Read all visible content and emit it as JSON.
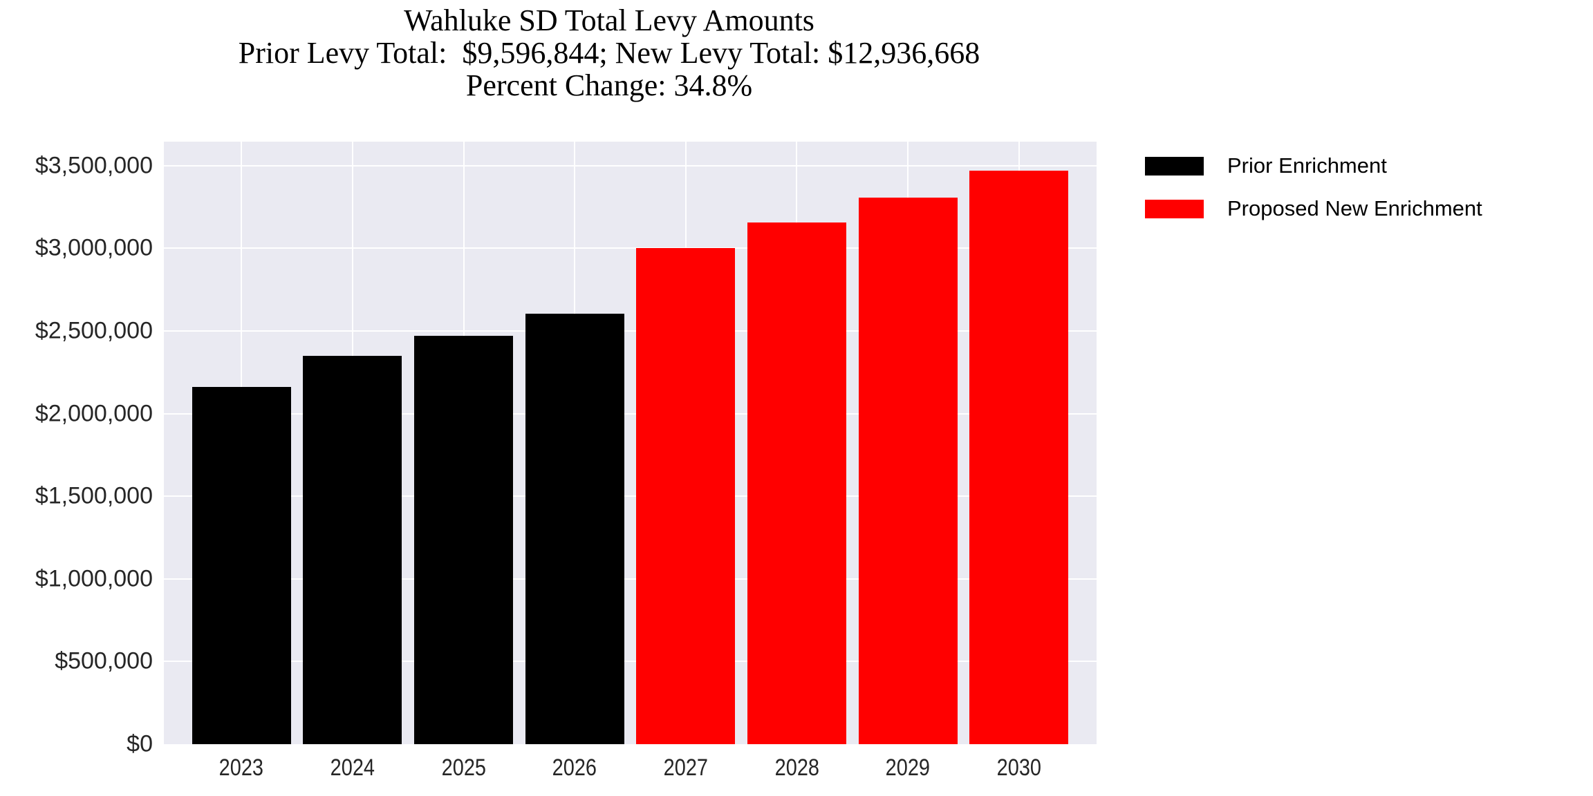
{
  "chart_data": {
    "type": "bar",
    "title": "Wahluke SD Total Levy Amounts",
    "subtitle": "Prior Levy Total:  $9,596,844; New Levy Total: $12,936,668",
    "subtitle2": "Percent Change: 34.8%",
    "prior_levy_total": "$9,596,844",
    "new_levy_total": "$12,936,668",
    "percent_change": "34.8%",
    "categories": [
      "2023",
      "2024",
      "2025",
      "2026",
      "2027",
      "2028",
      "2029",
      "2030"
    ],
    "series": [
      {
        "name": "Prior Enrichment",
        "color": "#000000",
        "categories": [
          "2023",
          "2024",
          "2025",
          "2026"
        ],
        "values": [
          2160000,
          2350000,
          2470000,
          2605000
        ]
      },
      {
        "name": "Proposed New Enrichment",
        "color": "#ff0000",
        "categories": [
          "2027",
          "2028",
          "2029",
          "2030"
        ],
        "values": [
          3000000,
          3155000,
          3305000,
          3470000
        ]
      }
    ],
    "xlabel": "",
    "ylabel": "",
    "ylim": [
      0,
      3645000
    ],
    "yticks": [
      {
        "value": 0,
        "label": "$0"
      },
      {
        "value": 500000,
        "label": "$500,000"
      },
      {
        "value": 1000000,
        "label": "$1,000,000"
      },
      {
        "value": 1500000,
        "label": "$1,500,000"
      },
      {
        "value": 2000000,
        "label": "$2,000,000"
      },
      {
        "value": 2500000,
        "label": "$2,500,000"
      },
      {
        "value": 3000000,
        "label": "$3,000,000"
      },
      {
        "value": 3500000,
        "label": "$3,500,000"
      }
    ],
    "grid": true,
    "legend_position": "upper-right-outside",
    "colors": {
      "plot_bg": "#eaeaf2",
      "grid": "#ffffff",
      "tick_text": "#262626",
      "title_text": "#000000"
    }
  }
}
